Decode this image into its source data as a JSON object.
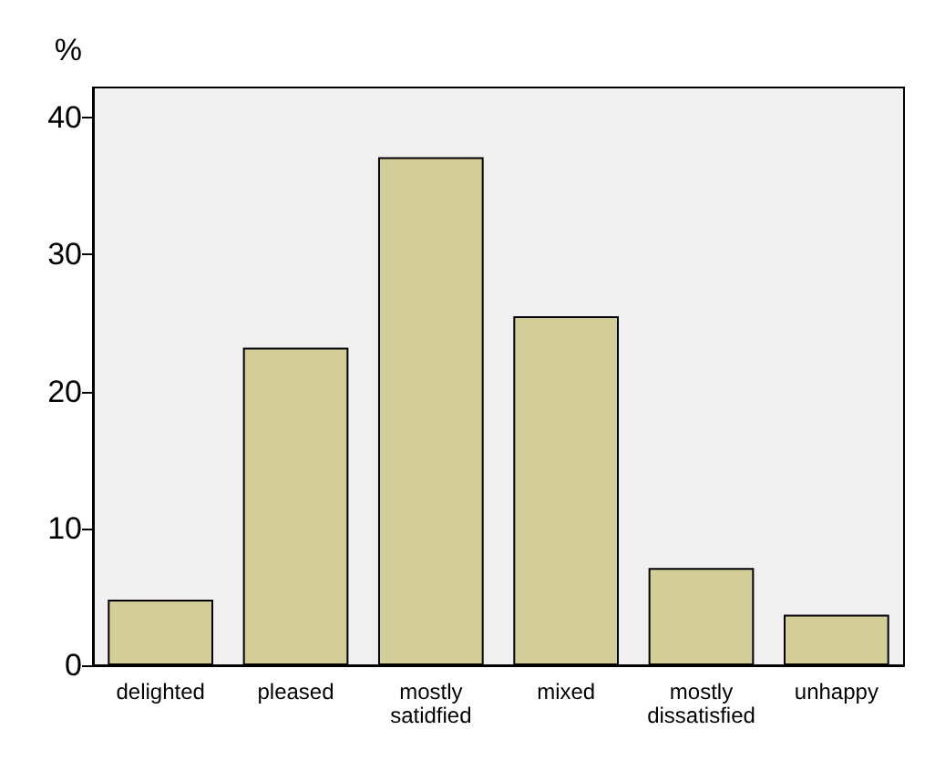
{
  "chart_data": {
    "type": "bar",
    "ylabel": "%",
    "categories": [
      "delighted",
      "pleased",
      "mostly satidfied",
      "mixed",
      "mostly dissatisfied",
      "unhappy"
    ],
    "values": [
      4.8,
      23.2,
      37.1,
      25.5,
      7.1,
      3.7
    ],
    "color": "#d3cd98",
    "ylim": [
      0,
      42.2
    ],
    "yticks": [
      0,
      10,
      20,
      30,
      40
    ],
    "grid": false
  }
}
